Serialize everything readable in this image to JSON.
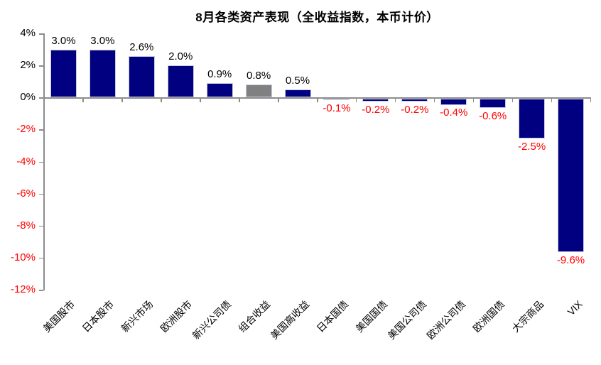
{
  "chart_data": {
    "type": "bar",
    "title": "8月各类资产表现（全收益指数，本币计价）",
    "categories": [
      "美国股市",
      "日本股市",
      "新兴市场",
      "欧洲股市",
      "新兴公司债",
      "组合收益",
      "美国高收益",
      "日本国债",
      "美国国债",
      "美国公司债",
      "欧洲公司债",
      "欧洲国债",
      "大宗商品",
      "VIX"
    ],
    "values": [
      3.0,
      3.0,
      2.6,
      2.0,
      0.9,
      0.8,
      0.5,
      -0.1,
      -0.2,
      -0.2,
      -0.4,
      -0.6,
      -2.5,
      -9.6
    ],
    "value_labels": [
      "3.0%",
      "3.0%",
      "2.6%",
      "2.0%",
      "0.9%",
      "0.8%",
      "0.5%",
      "-0.1%",
      "-0.2%",
      "-0.2%",
      "-0.4%",
      "-0.6%",
      "-2.5%",
      "-9.6%"
    ],
    "bar_colors": [
      "#000080",
      "#000080",
      "#000080",
      "#000080",
      "#000080",
      "#808080",
      "#000080",
      "#000080",
      "#000080",
      "#000080",
      "#000080",
      "#000080",
      "#000080",
      "#000080"
    ],
    "ylim": [
      -12,
      4
    ],
    "ytick_values": [
      4,
      2,
      0,
      -2,
      -4,
      -6,
      -8,
      -10,
      -12
    ],
    "ytick_labels": [
      "4%",
      "2%",
      "0%",
      "-2%",
      "-4%",
      "-6%",
      "-8%",
      "-10%",
      "-12%"
    ],
    "grid": false,
    "legend": "none",
    "colors": {
      "positive_label": "#000000",
      "negative_label": "#ff0000",
      "default_bar": "#000080",
      "highlight_bar": "#808080",
      "axis_line": "#8c8c8c",
      "bar_border": "#c9c9dd"
    }
  }
}
